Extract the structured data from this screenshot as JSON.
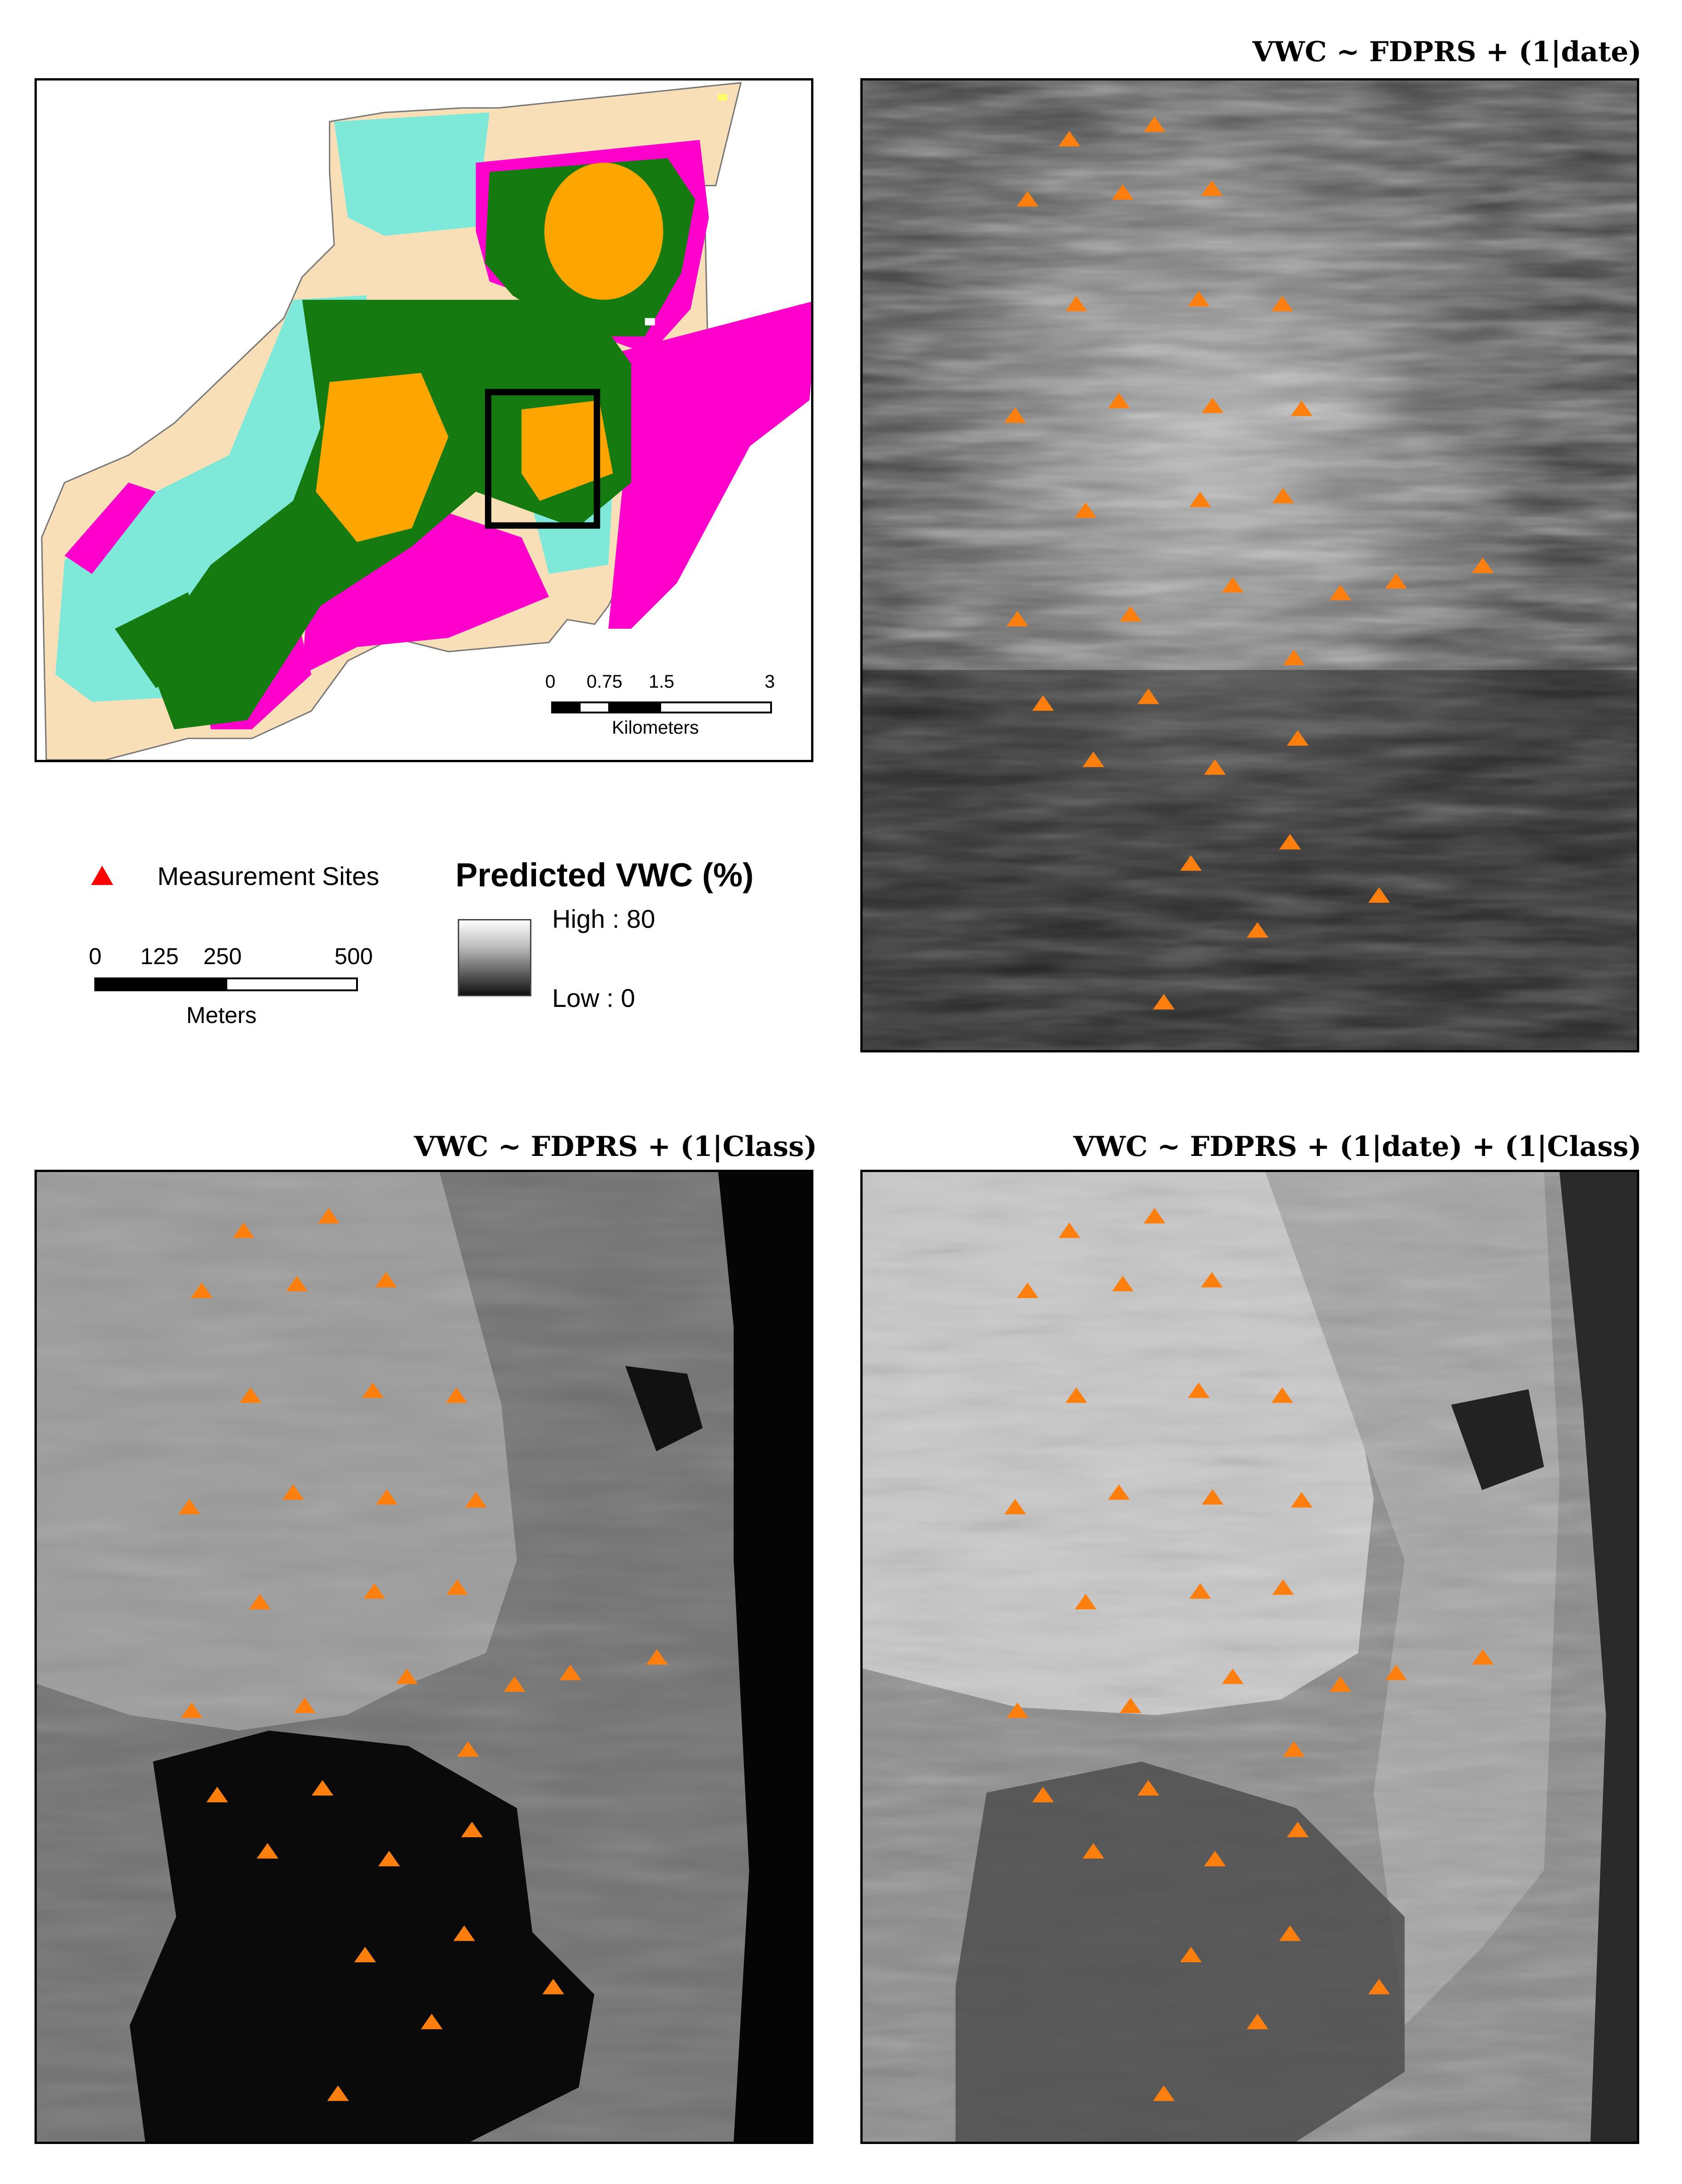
{
  "inset_map": {
    "scale_ticks": [
      "0",
      "0.75",
      "1.5",
      "3"
    ],
    "scale_unit": "Kilometers",
    "colors": {
      "cyan": "#7fe9d9",
      "green": "#157a10",
      "orange": "#ffa500",
      "magenta": "#ff00cc",
      "tan": "#f8dfb8"
    }
  },
  "legend": {
    "sites_label": "Measurement Sites",
    "sites_color": "#ff0000",
    "scale_ticks": [
      "0",
      "125",
      "250",
      "500"
    ],
    "scale_unit": "Meters",
    "vwc_title": "Predicted VWC (%)",
    "vwc_high": "High : 80",
    "vwc_low": "Low : 0"
  },
  "panels": [
    {
      "id": "date",
      "title": "VWC ~ FDPRS + (1|date)"
    },
    {
      "id": "class",
      "title": "VWC ~ FDPRS + (1|Class)"
    },
    {
      "id": "date-class",
      "title": "VWC ~ FDPRS + (1|date) + (1|Class)"
    }
  ],
  "marker_color": "#ff7f0e",
  "sites": [
    [
      0.267,
      0.06
    ],
    [
      0.377,
      0.045
    ],
    [
      0.213,
      0.122
    ],
    [
      0.336,
      0.115
    ],
    [
      0.451,
      0.111
    ],
    [
      0.276,
      0.23
    ],
    [
      0.434,
      0.225
    ],
    [
      0.542,
      0.23
    ],
    [
      0.197,
      0.345
    ],
    [
      0.331,
      0.33
    ],
    [
      0.452,
      0.335
    ],
    [
      0.567,
      0.338
    ],
    [
      0.288,
      0.443
    ],
    [
      0.436,
      0.432
    ],
    [
      0.543,
      0.428
    ],
    [
      0.2,
      0.555
    ],
    [
      0.346,
      0.55
    ],
    [
      0.478,
      0.52
    ],
    [
      0.617,
      0.528
    ],
    [
      0.689,
      0.516
    ],
    [
      0.801,
      0.5
    ],
    [
      0.557,
      0.595
    ],
    [
      0.233,
      0.642
    ],
    [
      0.369,
      0.635
    ],
    [
      0.562,
      0.678
    ],
    [
      0.298,
      0.7
    ],
    [
      0.455,
      0.708
    ],
    [
      0.552,
      0.785
    ],
    [
      0.424,
      0.807
    ],
    [
      0.667,
      0.84
    ],
    [
      0.51,
      0.876
    ],
    [
      0.389,
      0.95
    ]
  ]
}
